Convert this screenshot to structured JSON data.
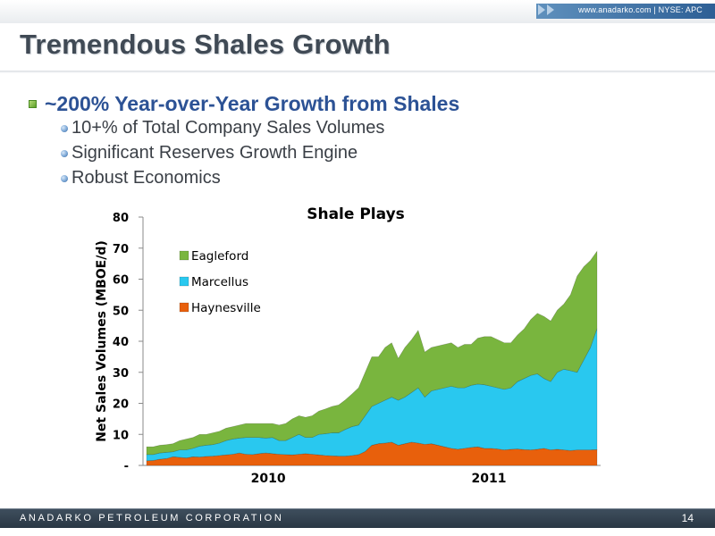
{
  "header": {
    "url_text": "www.anadarko.com  |  NYSE: APC"
  },
  "slide": {
    "title": "Tremendous Shales Growth",
    "bullet_main": "~200% Year-over-Year Growth from Shales",
    "sub_bullets": [
      "10+% of Total Company Sales Volumes",
      "Significant Reserves Growth Engine",
      "Robust Economics"
    ]
  },
  "footer": {
    "company": "ANADARKO PETROLEUM CORPORATION",
    "page_number": "14"
  },
  "chart_data": {
    "type": "area",
    "stacked": true,
    "title": "Shale Plays",
    "ylabel": "Net Sales Volumes (MBOE/d)",
    "xlabel": "",
    "ylim": [
      0,
      80
    ],
    "yticks": [
      0,
      10,
      20,
      30,
      40,
      50,
      60,
      70,
      80
    ],
    "ytick_labels": [
      "-",
      "10",
      "20",
      "30",
      "40",
      "50",
      "60",
      "70",
      "80"
    ],
    "x_period_labels": [
      {
        "label": "2010",
        "position": 0.27
      },
      {
        "label": "2011",
        "position": 0.76
      }
    ],
    "legend_position": "top-left",
    "colors": {
      "Haynesville": "#e8600c",
      "Marcellus": "#29c8ef",
      "Eagleford": "#79b53e"
    },
    "series": [
      {
        "name": "Haynesville",
        "values": [
          1.5,
          1.6,
          2.0,
          2.2,
          2.8,
          2.6,
          2.4,
          2.8,
          2.7,
          2.9,
          3.0,
          3.2,
          3.4,
          3.6,
          4.0,
          3.6,
          3.5,
          3.8,
          4.0,
          3.8,
          3.6,
          3.5,
          3.4,
          3.6,
          3.8,
          3.6,
          3.4,
          3.2,
          3.1,
          3.0,
          3.0,
          3.2,
          3.5,
          4.5,
          6.5,
          7.0,
          7.2,
          7.5,
          6.5,
          7.0,
          7.5,
          7.2,
          6.8,
          7.0,
          6.5,
          6.0,
          5.5,
          5.2,
          5.5,
          5.8,
          6.0,
          5.5,
          5.5,
          5.3,
          5.0,
          5.2,
          5.3,
          5.1,
          5.0,
          5.2,
          5.5,
          5.0,
          5.2,
          5.0,
          4.8,
          5.0,
          5.0,
          5.0,
          5.1
        ]
      },
      {
        "name": "Marcellus",
        "values": [
          2.0,
          1.9,
          2.0,
          2.0,
          1.6,
          2.4,
          2.6,
          2.7,
          3.5,
          3.6,
          3.7,
          4.0,
          4.6,
          4.9,
          4.8,
          5.4,
          5.5,
          5.2,
          4.8,
          5.2,
          4.4,
          4.5,
          5.6,
          6.4,
          5.2,
          5.4,
          6.6,
          7.0,
          7.4,
          7.5,
          8.6,
          9.3,
          9.5,
          11.5,
          12.5,
          13.0,
          13.8,
          14.5,
          14.5,
          15.0,
          16.0,
          17.8,
          15.2,
          17.0,
          18.0,
          19.0,
          20.0,
          19.8,
          19.5,
          20.0,
          20.2,
          20.5,
          20.0,
          19.7,
          19.5,
          19.8,
          21.7,
          22.9,
          24.0,
          24.3,
          22.5,
          22.0,
          24.8,
          26.0,
          25.7,
          25.0,
          29.0,
          33.0,
          39.0
        ]
      },
      {
        "name": "Eagleford",
        "values": [
          2.5,
          2.5,
          2.5,
          2.5,
          2.6,
          3.0,
          3.5,
          3.5,
          3.8,
          3.5,
          3.8,
          3.8,
          4.0,
          4.0,
          4.2,
          4.5,
          4.5,
          4.5,
          4.7,
          4.5,
          5.0,
          5.5,
          6.0,
          6.0,
          6.5,
          7.0,
          7.5,
          8.0,
          8.5,
          9.0,
          9.5,
          10.5,
          12.0,
          14.0,
          16.0,
          15.0,
          17.0,
          17.5,
          13.5,
          16.0,
          17.0,
          18.5,
          14.5,
          14.0,
          14.0,
          14.0,
          14.0,
          13.0,
          14.0,
          13.2,
          14.8,
          15.5,
          16.0,
          15.5,
          15.0,
          14.5,
          15.0,
          16.0,
          18.0,
          19.5,
          20.0,
          19.5,
          20.0,
          21.0,
          24.5,
          31.0,
          30.0,
          28.0,
          24.9
        ]
      }
    ]
  }
}
